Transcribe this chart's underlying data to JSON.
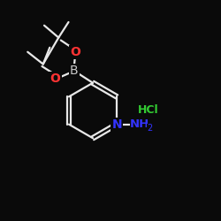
{
  "background_color": "#0a0a0a",
  "bond_color": "#e8e8e8",
  "atom_colors": {
    "B": "#c8c8c8",
    "O": "#ff3333",
    "N": "#3333ff",
    "Cl": "#33aa33",
    "H": "#e8e8e8",
    "C": "#e8e8e8"
  },
  "figsize": [
    2.5,
    2.5
  ],
  "dpi": 100,
  "xlim": [
    0,
    10
  ],
  "ylim": [
    0,
    10
  ]
}
